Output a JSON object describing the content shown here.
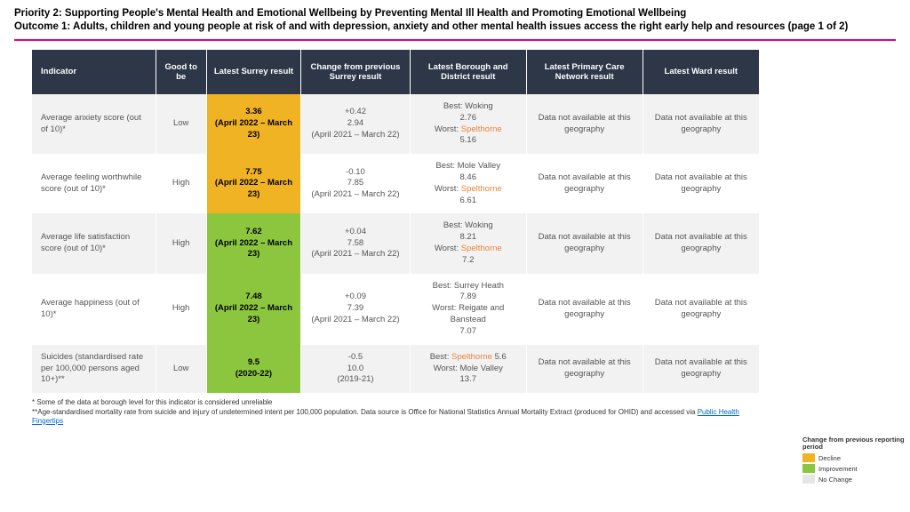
{
  "header": {
    "line1": "Priority 2: Supporting People's Mental Health and Emotional Wellbeing by Preventing Mental Ill Health and Promoting Emotional Wellbeing",
    "line2": "Outcome 1: Adults, children and young people at risk of and with depression, anxiety and other mental health issues access the right early help and resources (page 1 of 2)",
    "rule_color": "#e6007e"
  },
  "columns": [
    "Indicator",
    "Good to be",
    "Latest Surrey result",
    "Change from previous Surrey result",
    "Latest Borough and District result",
    "Latest Primary Care Network result",
    "Latest Ward result"
  ],
  "colors": {
    "header_bg": "#2d3748",
    "decline": "#f0b323",
    "improvement": "#8cc63f",
    "nochange": "#e6e6e6",
    "worst_highlight": "#e8833a"
  },
  "na_text": "Data not available at this geography",
  "rows": [
    {
      "indicator": "Average anxiety score (out of 10)*",
      "good": "Low",
      "result_value": "3.36",
      "result_period": "(April 2022 – March 23)",
      "result_status": "decline",
      "change_delta": "+0.42",
      "change_prev": "2.94",
      "change_period": "(April 2021 – March 22)",
      "best_label": "Best: Woking",
      "best_val": "2.76",
      "worst_prefix": "Worst: ",
      "worst_name": "Spelthorne",
      "worst_name_hl": true,
      "worst_val": "5.16",
      "pcn": "na",
      "ward": "na"
    },
    {
      "indicator": "Average feeling worthwhile score (out of 10)*",
      "good": "High",
      "result_value": "7.75",
      "result_period": "(April 2022 – March 23)",
      "result_status": "decline",
      "change_delta": "-0.10",
      "change_prev": "7.85",
      "change_period": "(April 2021 – March 22)",
      "best_label": "Best: Mole Valley",
      "best_val": "8.46",
      "worst_prefix": "Worst: ",
      "worst_name": "Spelthorne",
      "worst_name_hl": true,
      "worst_val": "6.61",
      "pcn": "na",
      "ward": "na"
    },
    {
      "indicator": "Average life satisfaction score (out of 10)*",
      "good": "High",
      "result_value": "7.62",
      "result_period": "(April 2022 – March 23)",
      "result_status": "improvement",
      "change_delta": "+0.04",
      "change_prev": "7.58",
      "change_period": "(April 2021 – March 22)",
      "best_label": "Best: Woking",
      "best_val": "8.21",
      "worst_prefix": "Worst: ",
      "worst_name": "Spelthorne",
      "worst_name_hl": true,
      "worst_val": " 7.2",
      "pcn": "na",
      "ward": "na"
    },
    {
      "indicator": "Average happiness (out of 10)*",
      "good": "High",
      "result_value": "7.48",
      "result_period": "(April 2022 – March 23)",
      "result_status": "improvement",
      "change_delta": "+0.09",
      "change_prev": "7.39",
      "change_period": "(April 2021 – March 22)",
      "best_label": "Best: Surrey Heath",
      "best_val": "7.89",
      "worst_prefix": "Worst: ",
      "worst_name": "Reigate and Banstead",
      "worst_name_hl": false,
      "worst_val": "7.07",
      "pcn": "na",
      "ward": "na"
    },
    {
      "indicator": "Suicides (standardised rate per 100,000 persons aged 10+)**",
      "good": "Low",
      "result_value": "9.5",
      "result_period": "(2020-22)",
      "result_status": "improvement",
      "change_delta": "-0.5",
      "change_prev": "10.0",
      "change_period": "(2019-21)",
      "best_label_prefix": "Best: ",
      "best_name": "Spelthorne",
      "best_name_hl": true,
      "best_val": " 5.6",
      "worst_prefix": "Worst: ",
      "worst_name": "Mole Valley",
      "worst_name_hl": false,
      "worst_val": "13.7",
      "pcn": "na",
      "ward": "na"
    }
  ],
  "footnotes": {
    "f1": "* Some of the data at borough level for this indicator is considered unreliable",
    "f2_pre": "**Age-standardised mortality rate from suicide and injury of undetermined intent per 100,000 population. Data source is Office for National Statistics Annual Mortality Extract (produced for OHID) and accessed via ",
    "f2_link": "Public Health Fingertips"
  },
  "legend": {
    "title": "Change from previous reporting period",
    "items": [
      {
        "label": "Decline",
        "color_key": "decline"
      },
      {
        "label": "Improvement",
        "color_key": "improvement"
      },
      {
        "label": "No Change",
        "color_key": "nochange"
      }
    ]
  }
}
